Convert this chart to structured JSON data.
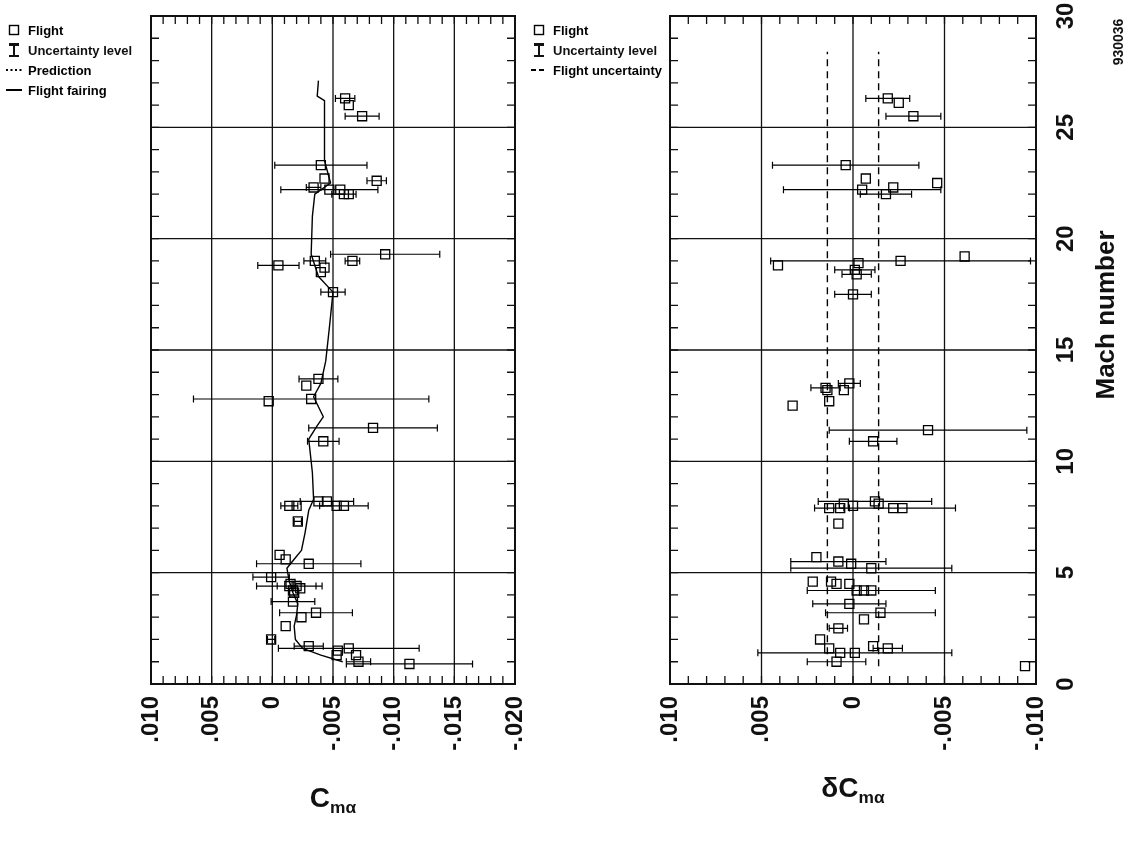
{
  "chart_data": [
    {
      "type": "scatter",
      "xlabel": "C$_{mα}$",
      "xlim": [
        0.01,
        -0.02
      ],
      "xticks": [
        {
          "value": 0.01,
          "label": ".010"
        },
        {
          "value": 0.009,
          "label": null
        },
        {
          "value": 0.008,
          "label": null
        },
        {
          "value": 0.007,
          "label": null
        },
        {
          "value": 0.006,
          "label": null
        },
        {
          "value": 0.005,
          "label": ".005"
        },
        {
          "value": 0.004,
          "label": null
        },
        {
          "value": 0.003,
          "label": null
        },
        {
          "value": 0.002,
          "label": null
        },
        {
          "value": 0.001,
          "label": null
        },
        0,
        {
          "value": -0.001,
          "label": null
        },
        {
          "value": -0.002,
          "label": null
        },
        {
          "value": -0.003,
          "label": null
        },
        {
          "value": -0.004,
          "label": null
        },
        {
          "value": -0.005,
          "label": "-.005"
        },
        {
          "value": -0.006,
          "label": null
        },
        {
          "value": -0.007,
          "label": null
        },
        {
          "value": -0.008,
          "label": null
        },
        {
          "value": -0.009,
          "label": null
        },
        {
          "value": -0.01,
          "label": "-.010"
        },
        {
          "value": -0.011,
          "label": null
        },
        {
          "value": -0.012,
          "label": null
        },
        {
          "value": -0.013,
          "label": null
        },
        {
          "value": -0.014,
          "label": null
        },
        {
          "value": -0.015,
          "label": "-.015"
        },
        {
          "value": -0.016,
          "label": null
        },
        {
          "value": -0.017,
          "label": null
        },
        {
          "value": -0.018,
          "label": null
        },
        {
          "value": -0.019,
          "label": null
        },
        {
          "value": -0.02,
          "label": "-.020"
        }
      ],
      "ylim": [
        0,
        30
      ],
      "yticks": [
        0,
        {
          "value": 1,
          "label": null
        },
        {
          "value": 2,
          "label": null
        },
        {
          "value": 3,
          "label": null
        },
        {
          "value": 4,
          "label": null
        },
        5,
        {
          "value": 6,
          "label": null
        },
        {
          "value": 7,
          "label": null
        },
        {
          "value": 8,
          "label": null
        },
        {
          "value": 9,
          "label": null
        },
        10,
        {
          "value": 11,
          "label": null
        },
        {
          "value": 12,
          "label": null
        },
        {
          "value": 13,
          "label": null
        },
        {
          "value": 14,
          "label": null
        },
        15,
        {
          "value": 16,
          "label": null
        },
        {
          "value": 17,
          "label": null
        },
        {
          "value": 18,
          "label": null
        },
        {
          "value": 19,
          "label": null
        },
        20,
        {
          "value": 21,
          "label": null
        },
        {
          "value": 22,
          "label": null
        },
        {
          "value": 23,
          "label": null
        },
        {
          "value": 24,
          "label": null
        },
        25,
        {
          "value": 26,
          "label": null
        },
        {
          "value": 27,
          "label": null
        },
        {
          "value": 28,
          "label": null
        },
        {
          "value": 29,
          "label": null
        },
        30
      ],
      "tick_labels": "x",
      "grid": true,
      "legend": "left",
      "series": [
        {
          "name": "Flight",
          "type": "scatter",
          "marker": "square",
          "color": "#000000",
          "x": [
            -0.006,
            -0.0063,
            -0.0074,
            -0.004,
            -0.0043,
            -0.0086,
            -0.0047,
            -0.0056,
            -0.0059,
            -0.0063,
            -0.0034,
            -0.0005,
            -0.0035,
            -0.004,
            -0.0043,
            -0.0066,
            -0.0093,
            -0.005,
            -0.0038,
            -0.0028,
            -0.0032,
            0.0003,
            -0.0083,
            -0.0042,
            -0.0014,
            -0.002,
            -0.0038,
            -0.0045,
            -0.0053,
            -0.0059,
            -0.0021,
            -0.0006,
            -0.0011,
            -0.003,
            0.0001,
            -0.0014,
            -0.0017,
            -0.002,
            -0.0018,
            -0.0023,
            -0.0015,
            -0.0017,
            -0.0036,
            -0.0024,
            -0.0011,
            0.0001,
            -0.003,
            -0.0054,
            -0.0063,
            -0.0069,
            -0.0071,
            -0.0113,
            -0.0053
          ],
          "values": [
            26.3,
            26.0,
            25.5,
            23.3,
            22.7,
            22.6,
            22.2,
            22.2,
            22.0,
            22.0,
            22.3,
            18.8,
            19.0,
            18.5,
            18.7,
            19.0,
            19.3,
            17.6,
            13.7,
            13.4,
            12.8,
            12.7,
            11.5,
            10.9,
            8.0,
            8.0,
            8.2,
            8.2,
            8.0,
            8.0,
            7.3,
            5.8,
            5.6,
            5.4,
            4.8,
            4.4,
            4.2,
            4.4,
            4.1,
            4.3,
            4.5,
            3.7,
            3.2,
            3.0,
            2.6,
            2.0,
            1.7,
            1.5,
            1.6,
            1.3,
            1.0,
            0.9,
            1.3
          ],
          "xerrors": [
            0.0008,
            null,
            0.0014,
            0.0038,
            null,
            0.0008,
            0.004,
            null,
            0.001,
            null,
            0.0006,
            0.0017,
            0.0009,
            null,
            null,
            0.0006,
            0.0045,
            0.001,
            0.0016,
            null,
            0.0097,
            null,
            0.0053,
            0.0013,
            0.0007,
            null,
            null,
            0.0022,
            null,
            0.002,
            0.0003,
            null,
            null,
            0.0043,
            0.0015,
            0.0027,
            null,
            0.0016,
            null,
            null,
            null,
            0.0018,
            0.003,
            null,
            null,
            0.0003,
            0.0012,
            null,
            0.0058,
            null,
            0.001,
            0.0052,
            null
          ]
        },
        {
          "name": "Prediction",
          "type": "line",
          "line_style": "dotted",
          "color": "#000000"
        },
        {
          "name": "Flight fairing",
          "type": "line",
          "line_style": "solid",
          "color": "#000000",
          "x": [
            -0.0058,
            -0.004,
            -0.0025,
            -0.0019,
            -0.0018,
            -0.002,
            -0.0021,
            -0.0017,
            -0.0014,
            -0.0012,
            -0.0018,
            -0.0024,
            -0.0027,
            -0.003,
            -0.0034,
            -0.0033,
            -0.003,
            -0.0037,
            -0.0042,
            -0.0034,
            -0.004,
            -0.0044,
            -0.0047,
            -0.005,
            -0.0038,
            -0.0032,
            -0.0033,
            -0.0035,
            -0.0048,
            -0.0043,
            -0.0043,
            -0.0037,
            -0.0038
          ],
          "values": [
            1.0,
            1.3,
            1.6,
            2.0,
            2.6,
            3.1,
            3.6,
            4.1,
            4.6,
            5.2,
            5.6,
            6.0,
            6.8,
            7.8,
            8.3,
            9.5,
            11.0,
            11.6,
            12.0,
            12.9,
            13.5,
            14.5,
            16.0,
            17.6,
            18.3,
            19.3,
            21.0,
            22.0,
            22.5,
            23.5,
            26.2,
            26.4,
            27.1
          ]
        }
      ],
      "annotations": [
        "Uncertainty level"
      ]
    },
    {
      "type": "scatter",
      "xlabel": "δC$_{mα}$",
      "ylabel": "Mach number",
      "xlim": [
        0.01,
        -0.01
      ],
      "xticks": [
        {
          "value": 0.01,
          "label": ".010"
        },
        {
          "value": 0.009,
          "label": null
        },
        {
          "value": 0.008,
          "label": null
        },
        {
          "value": 0.007,
          "label": null
        },
        {
          "value": 0.006,
          "label": null
        },
        {
          "value": 0.005,
          "label": ".005"
        },
        {
          "value": 0.004,
          "label": null
        },
        {
          "value": 0.003,
          "label": null
        },
        {
          "value": 0.002,
          "label": null
        },
        {
          "value": 0.001,
          "label": null
        },
        0,
        {
          "value": -0.001,
          "label": null
        },
        {
          "value": -0.002,
          "label": null
        },
        {
          "value": -0.003,
          "label": null
        },
        {
          "value": -0.004,
          "label": null
        },
        {
          "value": -0.005,
          "label": "-.005"
        },
        {
          "value": -0.006,
          "label": null
        },
        {
          "value": -0.007,
          "label": null
        },
        {
          "value": -0.008,
          "label": null
        },
        {
          "value": -0.009,
          "label": null
        },
        {
          "value": -0.01,
          "label": "-.010"
        }
      ],
      "ylim": [
        0,
        30
      ],
      "yticks": [
        0,
        {
          "value": 1,
          "label": null
        },
        {
          "value": 2,
          "label": null
        },
        {
          "value": 3,
          "label": null
        },
        {
          "value": 4,
          "label": null
        },
        5,
        {
          "value": 6,
          "label": null
        },
        {
          "value": 7,
          "label": null
        },
        {
          "value": 8,
          "label": null
        },
        {
          "value": 9,
          "label": null
        },
        10,
        {
          "value": 11,
          "label": null
        },
        {
          "value": 12,
          "label": null
        },
        {
          "value": 13,
          "label": null
        },
        {
          "value": 14,
          "label": null
        },
        15,
        {
          "value": 16,
          "label": null
        },
        {
          "value": 17,
          "label": null
        },
        {
          "value": 18,
          "label": null
        },
        {
          "value": 19,
          "label": null
        },
        20,
        {
          "value": 21,
          "label": null
        },
        {
          "value": 22,
          "label": null
        },
        {
          "value": 23,
          "label": null
        },
        {
          "value": 24,
          "label": null
        },
        25,
        {
          "value": 26,
          "label": null
        },
        {
          "value": 27,
          "label": null
        },
        {
          "value": 28,
          "label": null
        },
        {
          "value": 29,
          "label": null
        },
        30
      ],
      "grid": true,
      "legend": "left",
      "series": [
        {
          "name": "Flight",
          "type": "scatter",
          "marker": "square",
          "color": "#000000",
          "x": [
            -0.0019,
            -0.0025,
            -0.0033,
            0.0004,
            -0.0007,
            -0.0046,
            -0.0022,
            -0.0005,
            -0.0018,
            0.0041,
            -0.0003,
            -0.0026,
            -0.0061,
            -0.0001,
            -0.0002,
            0.0,
            0.0015,
            0.0014,
            0.0002,
            0.0005,
            0.0033,
            0.0013,
            -0.0041,
            -0.0011,
            0.0013,
            0.0007,
            0.0005,
            0.0,
            -0.0012,
            -0.0014,
            -0.0022,
            -0.0027,
            0.0008,
            0.002,
            0.0008,
            0.0001,
            -0.001,
            0.0022,
            0.0012,
            0.0009,
            0.0002,
            -0.0002,
            -0.0006,
            -0.001,
            0.0002,
            -0.0015,
            -0.0006,
            0.0008,
            0.0018,
            0.0013,
            0.0007,
            0.0009,
            -0.0001,
            -0.0011,
            -0.0019,
            -0.0094
          ],
          "values": [
            26.3,
            26.1,
            25.5,
            23.3,
            22.7,
            22.5,
            22.3,
            22.2,
            22.0,
            18.8,
            18.9,
            19.0,
            19.2,
            18.6,
            18.4,
            17.5,
            13.3,
            13.2,
            13.5,
            13.2,
            12.5,
            12.7,
            11.4,
            10.9,
            7.9,
            7.9,
            8.1,
            8.0,
            8.2,
            8.1,
            7.9,
            7.9,
            7.2,
            5.7,
            5.5,
            5.4,
            5.2,
            4.6,
            4.6,
            4.5,
            4.5,
            4.2,
            4.2,
            4.2,
            3.6,
            3.2,
            2.9,
            2.5,
            2.0,
            1.6,
            1.4,
            1.0,
            1.4,
            1.7,
            1.6,
            0.8
          ],
          "xerrors": [
            0.0012,
            null,
            0.0015,
            0.004,
            null,
            null,
            null,
            0.0043,
            0.0014,
            null,
            null,
            0.0071,
            null,
            0.0011,
            0.0008,
            0.001,
            0.0008,
            null,
            0.0006,
            null,
            null,
            null,
            0.0054,
            0.0013,
            0.0008,
            null,
            null,
            null,
            0.0031,
            null,
            null,
            0.0029,
            null,
            null,
            0.0026,
            null,
            0.0044,
            null,
            null,
            null,
            null,
            null,
            null,
            0.0035,
            0.002,
            0.003,
            null,
            0.0005,
            null,
            null,
            null,
            0.0016,
            0.0053,
            null,
            0.0008,
            null
          ]
        },
        {
          "name": "Flight uncertainty",
          "type": "line",
          "line_style": "dashed",
          "color": "#000000",
          "x": [
            0.0014,
            0.0014
          ],
          "values": [
            0.8,
            28.4
          ]
        },
        {
          "type": "line",
          "line_style": "dashed",
          "color": "#000000",
          "x": [
            -0.0014,
            -0.0014
          ],
          "values": [
            0.8,
            28.4
          ]
        }
      ],
      "annotations": [
        "Uncertainty level",
        "930036"
      ]
    }
  ]
}
